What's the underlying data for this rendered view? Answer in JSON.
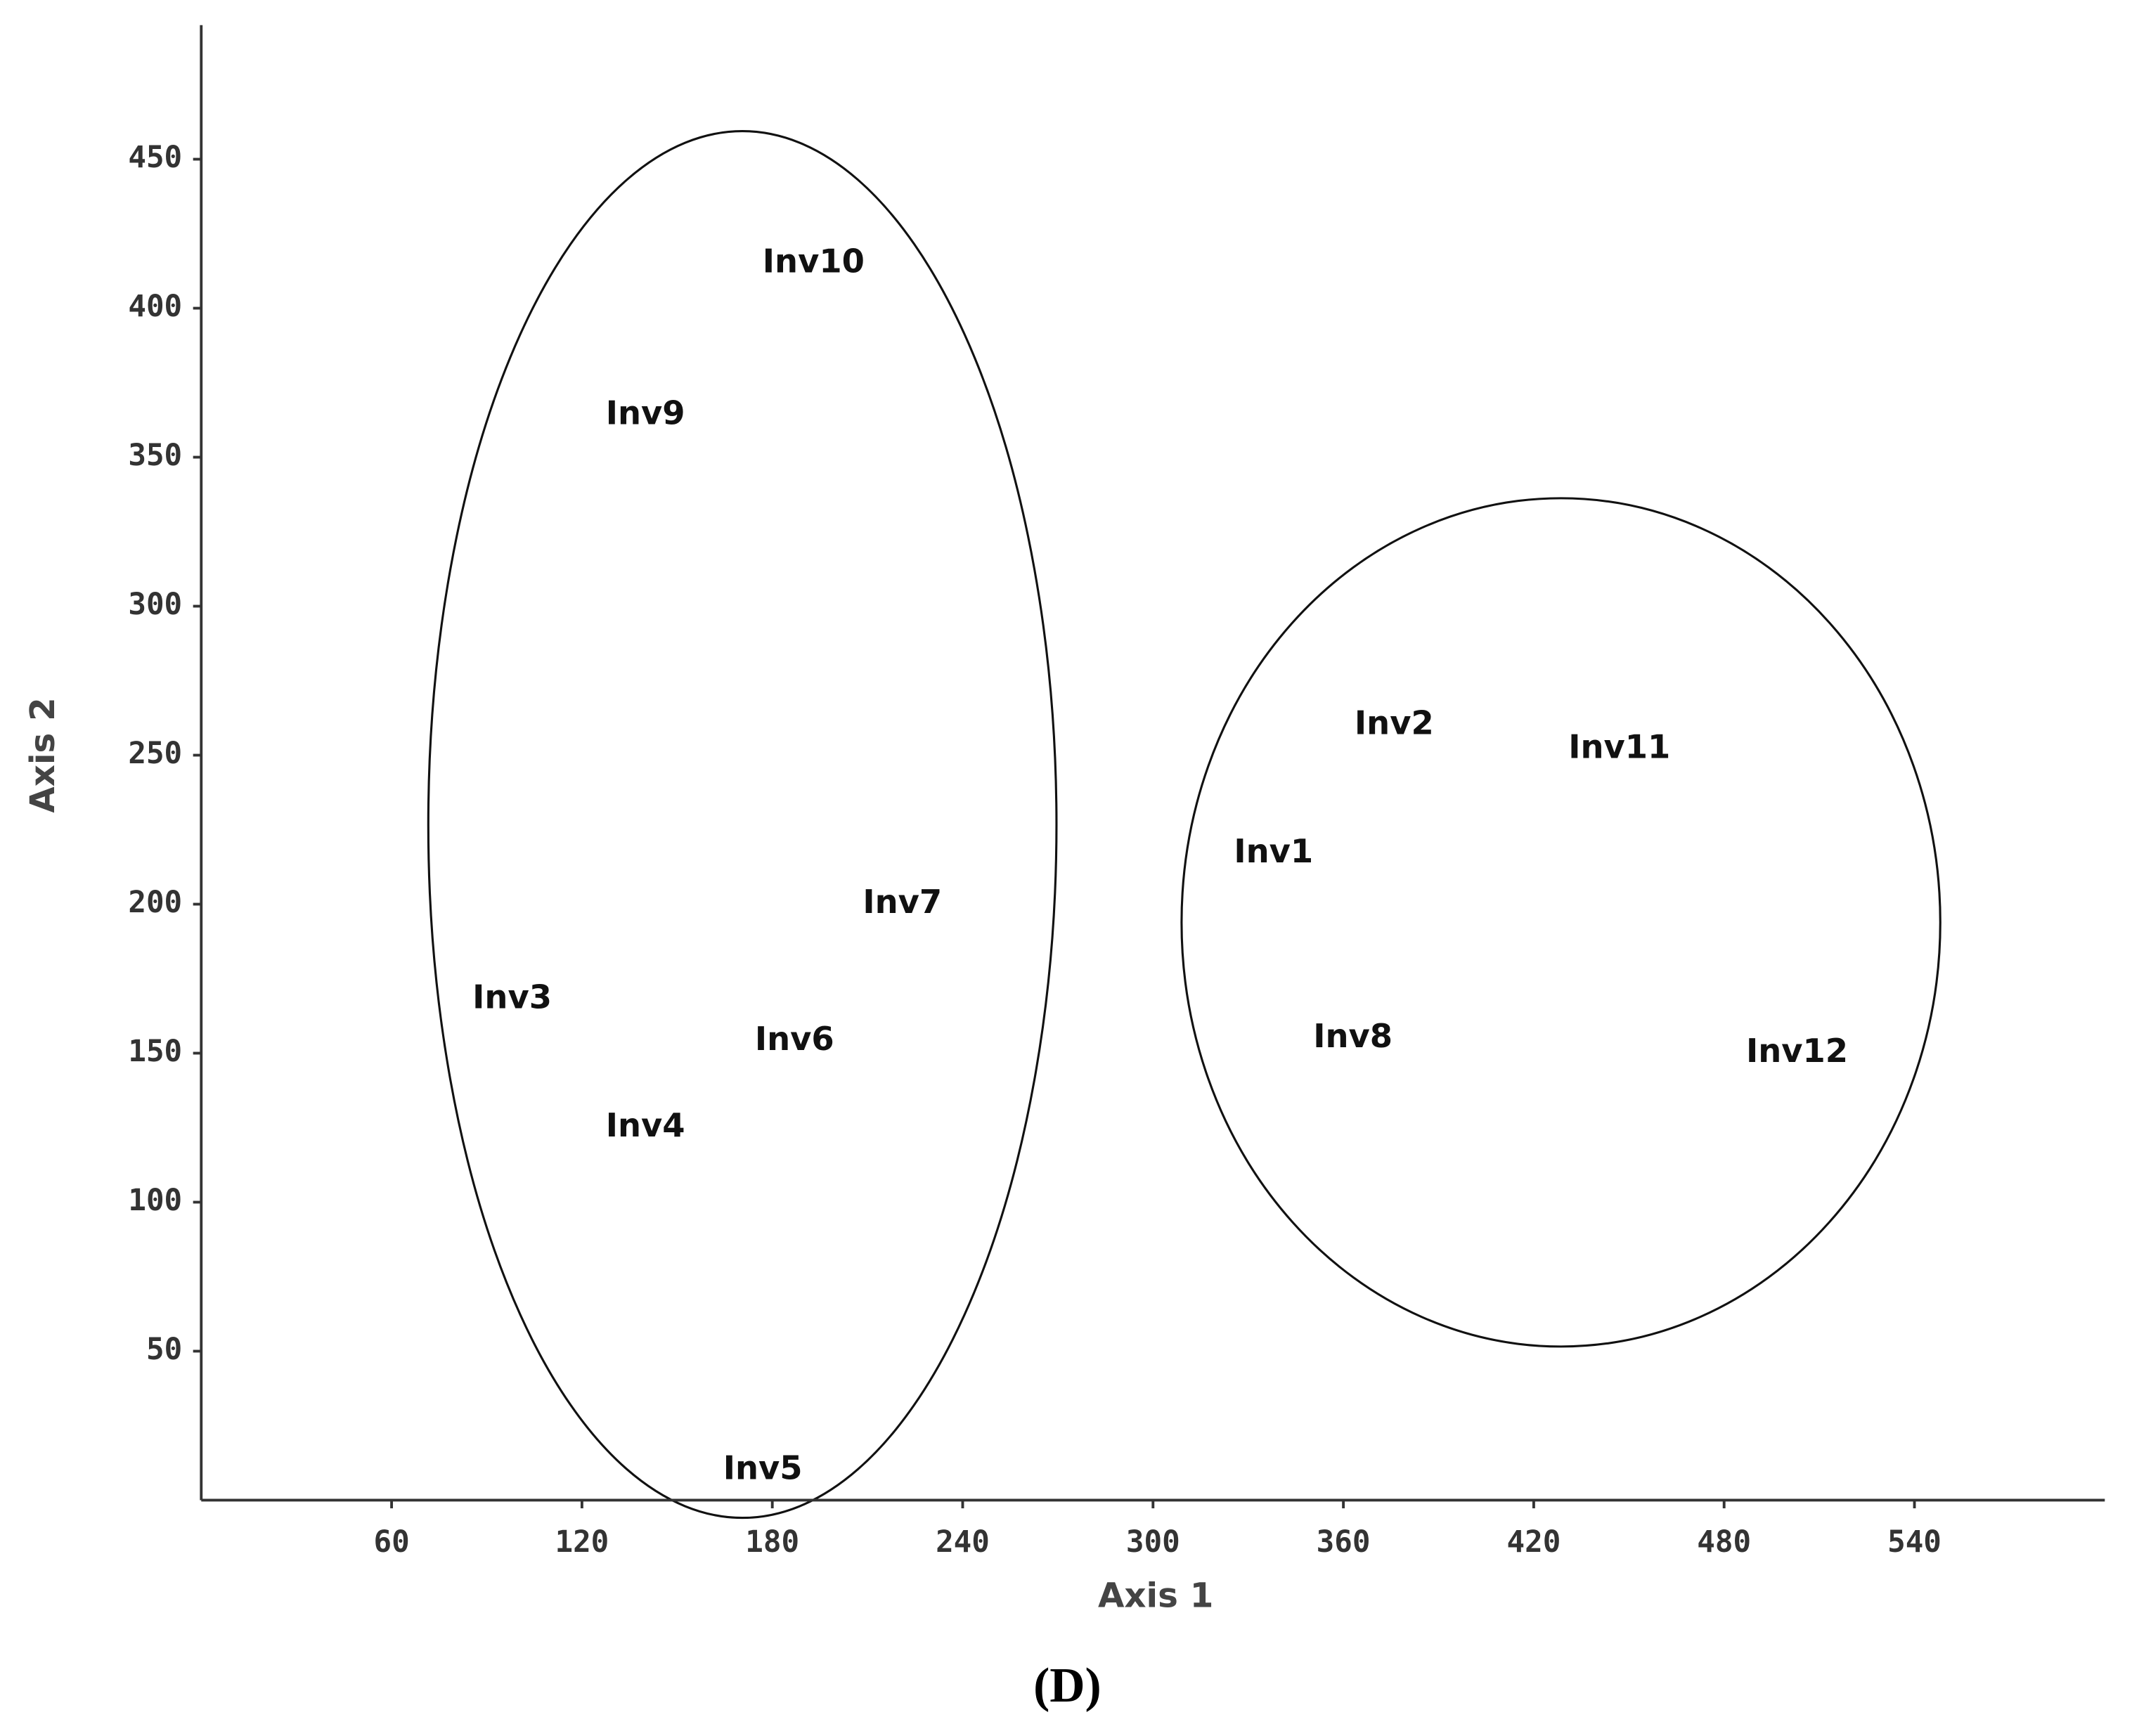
{
  "chart_data": {
    "type": "scatter",
    "x_label": "Axis 1",
    "y_label": "Axis 2",
    "caption": "(D)",
    "xlim": [
      0,
      600
    ],
    "ylim": [
      0,
      495
    ],
    "xticks": [
      60,
      120,
      180,
      240,
      300,
      360,
      420,
      480,
      540
    ],
    "yticks": [
      50,
      100,
      150,
      200,
      250,
      300,
      350,
      400,
      450
    ],
    "grid": false,
    "series": [
      {
        "name": "Inv",
        "color": "#111111",
        "labels": [
          "Inv1",
          "Inv2",
          "Inv3",
          "Inv4",
          "Inv5",
          "Inv6",
          "Inv7",
          "Inv8",
          "Inv9",
          "Inv10",
          "Inv11",
          "Inv12"
        ],
        "x": [
          338,
          376,
          98,
          140,
          177,
          187,
          221,
          363,
          140,
          193,
          447,
          503
        ],
        "values": [
          217,
          260,
          168,
          125,
          10,
          154,
          200,
          155,
          364,
          415,
          252,
          150
        ]
      }
    ]
  }
}
